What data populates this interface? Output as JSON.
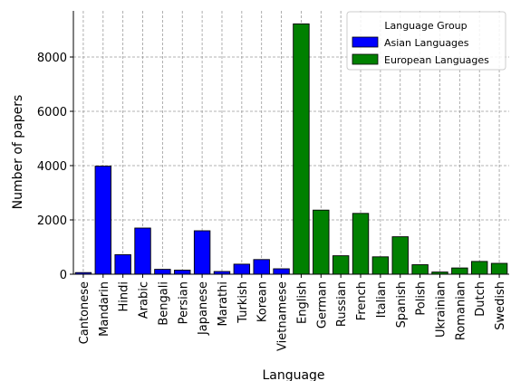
{
  "chart_data": {
    "type": "bar",
    "xlabel": "Language",
    "ylabel": "Number of papers",
    "ylim": [
      0,
      9700
    ],
    "yticks": [
      0,
      2000,
      4000,
      6000,
      8000
    ],
    "grid": true,
    "legend": {
      "title": "Language Group",
      "placement": "top-right",
      "entries": [
        {
          "name": "Asian Languages",
          "color": "#0000ff"
        },
        {
          "name": "European Languages",
          "color": "#008000"
        }
      ]
    },
    "categories": [
      "Cantonese",
      "Mandarin",
      "Hindi",
      "Arabic",
      "Bengali",
      "Persian",
      "Japanese",
      "Marathi",
      "Turkish",
      "Korean",
      "Vietnamese",
      "English",
      "German",
      "Russian",
      "French",
      "Italian",
      "Spanish",
      "Polish",
      "Ukrainian",
      "Romanian",
      "Dutch",
      "Swedish"
    ],
    "groups": [
      "Asian Languages",
      "Asian Languages",
      "Asian Languages",
      "Asian Languages",
      "Asian Languages",
      "Asian Languages",
      "Asian Languages",
      "Asian Languages",
      "Asian Languages",
      "Asian Languages",
      "Asian Languages",
      "European Languages",
      "European Languages",
      "European Languages",
      "European Languages",
      "European Languages",
      "European Languages",
      "European Languages",
      "European Languages",
      "European Languages",
      "European Languages",
      "European Languages"
    ],
    "values": [
      60,
      3980,
      720,
      1700,
      180,
      150,
      1600,
      100,
      370,
      540,
      200,
      9220,
      2360,
      680,
      2240,
      640,
      1380,
      350,
      80,
      230,
      470,
      400
    ]
  }
}
